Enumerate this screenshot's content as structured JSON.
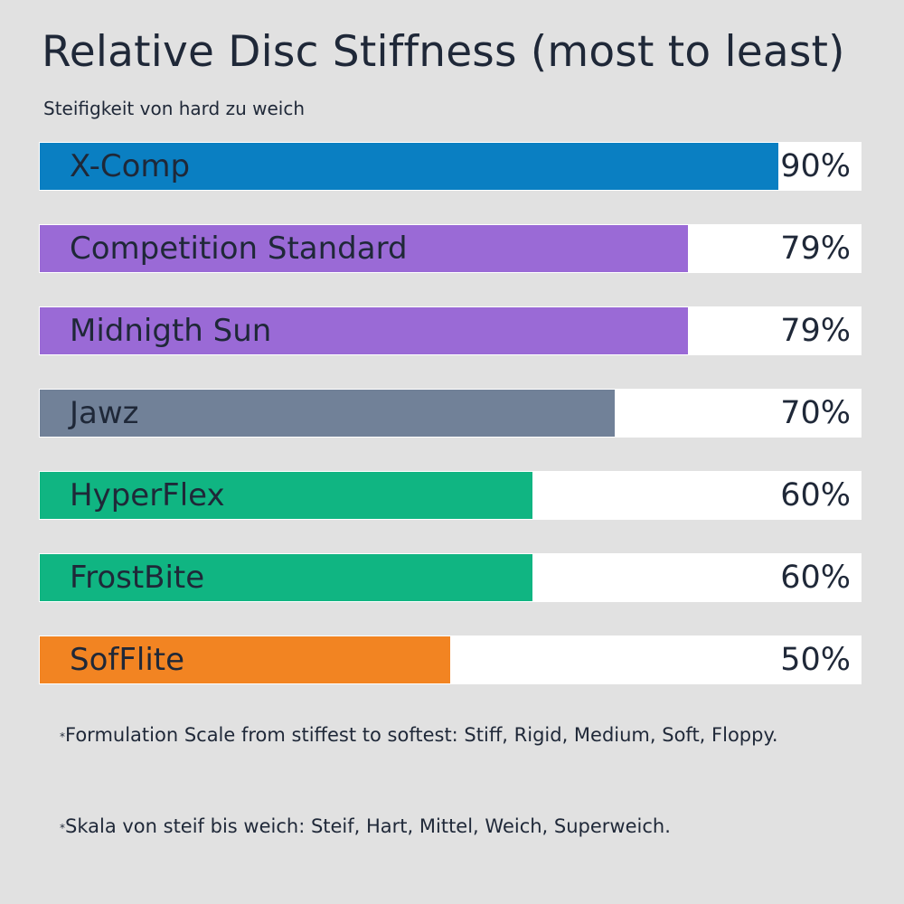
{
  "chart_data": {
    "type": "bar",
    "orientation": "horizontal",
    "title": "Relative Disc Stiffness (most to least)",
    "subtitle": "Steifigkeit von hard zu weich",
    "categories": [
      "X-Comp",
      "Competition Standard",
      "Midnigth Sun",
      "Jawz",
      "HyperFlex",
      "FrostBite",
      "SofFlite"
    ],
    "values": [
      90,
      79,
      79,
      70,
      60,
      60,
      50
    ],
    "value_labels": [
      "90%",
      "79%",
      "79%",
      "70%",
      "60%",
      "60%",
      "50%"
    ],
    "colors": [
      "#0a7fc2",
      "#9a6ad6",
      "#9a6ad6",
      "#718198",
      "#10b582",
      "#10b582",
      "#f28422"
    ],
    "xlim": [
      0,
      100
    ],
    "grid": false,
    "legend": "none"
  },
  "notes": [
    {
      "mark": "*",
      "text": "Formulation Scale from stiffest to softest: Stiff, Rigid, Medium, Soft, Floppy."
    },
    {
      "mark": "*",
      "text": "Skala von steif bis weich: Steif, Hart, Mittel, Weich, Superweich."
    }
  ]
}
